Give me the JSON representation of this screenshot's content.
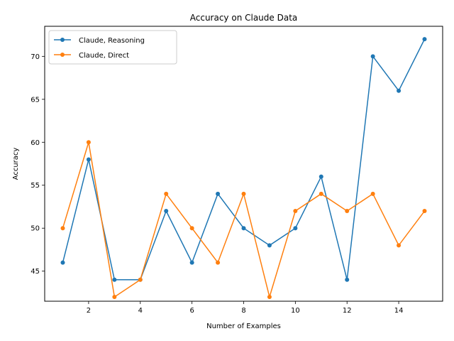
{
  "chart_data": {
    "type": "line",
    "title": "Accuracy on Claude Data",
    "xlabel": "Number of Examples",
    "ylabel": "Accuracy",
    "xlim": [
      0.3,
      15.7
    ],
    "ylim": [
      41.5,
      73.5
    ],
    "xticks": [
      2,
      4,
      6,
      8,
      10,
      12,
      14
    ],
    "yticks": [
      45,
      50,
      55,
      60,
      65,
      70
    ],
    "grid": false,
    "legend_position": "top-left",
    "x": [
      1,
      2,
      3,
      4,
      5,
      6,
      7,
      8,
      9,
      10,
      11,
      12,
      13,
      14,
      15
    ],
    "series": [
      {
        "name": "Claude, Reasoning",
        "color": "#1f77b4",
        "values": [
          46,
          58,
          44,
          44,
          52,
          46,
          54,
          50,
          48,
          50,
          56,
          44,
          70,
          66,
          72
        ]
      },
      {
        "name": "Claude, Direct",
        "color": "#ff7f0e",
        "values": [
          50,
          60,
          42,
          44,
          54,
          50,
          46,
          54,
          42,
          52,
          54,
          52,
          54,
          48,
          52
        ]
      }
    ]
  }
}
